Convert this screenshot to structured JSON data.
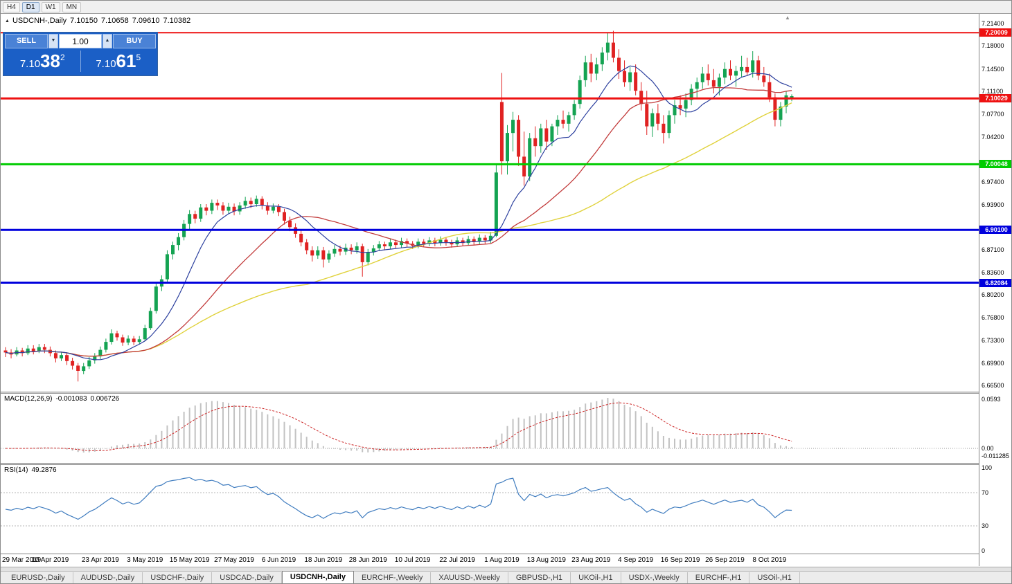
{
  "toolbar": {
    "buttons": [
      {
        "label": "H4",
        "active": false
      },
      {
        "label": "D1",
        "active": true
      },
      {
        "label": "W1",
        "active": false
      },
      {
        "label": "MN",
        "active": false
      }
    ]
  },
  "icons": {
    "collapse_triangle": "▲",
    "shift_marker": "▲",
    "spin_down": "▼",
    "spin_up": "▲"
  },
  "title_bar": {
    "symbol": "USDCNH-,Daily",
    "open": "7.10150",
    "high": "7.10658",
    "low": "7.09610",
    "close": "7.10382"
  },
  "one_click": {
    "sell_label": "SELL",
    "buy_label": "BUY",
    "volume": "1.00",
    "sell": {
      "big": "7.10",
      "pips": "38",
      "pt": "2"
    },
    "buy": {
      "big": "7.10",
      "pips": "61",
      "pt": "5"
    }
  },
  "indicators": {
    "macd": {
      "label": "MACD(12,26,9)",
      "value1": "-0.001083",
      "value2": "0.006726",
      "axis": [
        "0.0593",
        "0.00",
        "-0.011285"
      ]
    },
    "rsi": {
      "label": "RSI(14)",
      "value": "49.2876",
      "axis": [
        "100",
        "70",
        "30",
        "0"
      ]
    }
  },
  "tabs": [
    {
      "label": "EURUSD-,Daily",
      "active": false
    },
    {
      "label": "AUDUSD-,Daily",
      "active": false
    },
    {
      "label": "USDCHF-,Daily",
      "active": false
    },
    {
      "label": "USDCAD-,Daily",
      "active": false
    },
    {
      "label": "USDCNH-,Daily",
      "active": true
    },
    {
      "label": "EURCHF-,Weekly",
      "active": false
    },
    {
      "label": "XAUUSD-,Weekly",
      "active": false
    },
    {
      "label": "GBPUSD-,H1",
      "active": false
    },
    {
      "label": "UKOil-,H1",
      "active": false
    },
    {
      "label": "USDX-,Weekly",
      "active": false
    },
    {
      "label": "EURCHF-,H1",
      "active": false
    },
    {
      "label": "USOil-,H1",
      "active": false
    }
  ],
  "chart_data": {
    "type": "candlestick",
    "symbol": "USDCNH",
    "timeframe": "Daily",
    "ylim": [
      6.665,
      7.214
    ],
    "y_ticks": [
      "7.21400",
      "7.18000",
      "7.14500",
      "7.11100",
      "7.07700",
      "7.04200",
      "6.97400",
      "6.93900",
      "6.87100",
      "6.83600",
      "6.80200",
      "6.76800",
      "6.73300",
      "6.69900",
      "6.66500"
    ],
    "hlines": [
      {
        "price": 7.20009,
        "label": "7.20009",
        "color": "#ee1111",
        "w": 2
      },
      {
        "price": 7.10029,
        "label": "7.10029",
        "color": "#ee1111",
        "w": 3
      },
      {
        "price": 7.00048,
        "label": "7.00048",
        "color": "#00cc00",
        "w": 3
      },
      {
        "price": 6.901,
        "label": "6.90100",
        "color": "#0000dd",
        "w": 3
      },
      {
        "price": 6.82084,
        "label": "6.82084",
        "color": "#0000dd",
        "w": 3
      }
    ],
    "x_labels": [
      {
        "label": "29 Mar 2019",
        "i": 0
      },
      {
        "label": "10 Apr 2019",
        "i": 8
      },
      {
        "label": "23 Apr 2019",
        "i": 17
      },
      {
        "label": "3 May 2019",
        "i": 25
      },
      {
        "label": "15 May 2019",
        "i": 33
      },
      {
        "label": "27 May 2019",
        "i": 41
      },
      {
        "label": "6 Jun 2019",
        "i": 49
      },
      {
        "label": "18 Jun 2019",
        "i": 57
      },
      {
        "label": "28 Jun 2019",
        "i": 65
      },
      {
        "label": "10 Jul 2019",
        "i": 73
      },
      {
        "label": "22 Jul 2019",
        "i": 81
      },
      {
        "label": "1 Aug 2019",
        "i": 89
      },
      {
        "label": "13 Aug 2019",
        "i": 97
      },
      {
        "label": "23 Aug 2019",
        "i": 105
      },
      {
        "label": "4 Sep 2019",
        "i": 113
      },
      {
        "label": "16 Sep 2019",
        "i": 121
      },
      {
        "label": "26 Sep 2019",
        "i": 129
      },
      {
        "label": "8 Oct 2019",
        "i": 137
      }
    ],
    "up_color": "#14a352",
    "down_color": "#e02222",
    "ma_periods": {
      "blue": 10,
      "red": 25,
      "yellow": 55
    },
    "ma_colors": {
      "blue": "#2b3f9e",
      "red": "#c23b3b",
      "yellow": "#e0d23c"
    },
    "macd": {
      "fast": 12,
      "slow": 26,
      "signal": 9,
      "hist_color": "#c2c2c2",
      "signal_color": "#cc2222"
    },
    "rsi": {
      "period": 14,
      "color": "#3f7cbf",
      "levels": [
        70,
        30
      ]
    },
    "candles": [
      [
        6.718,
        6.723,
        6.708,
        6.715
      ],
      [
        6.715,
        6.72,
        6.706,
        6.712
      ],
      [
        6.712,
        6.723,
        6.709,
        6.718
      ],
      [
        6.718,
        6.722,
        6.709,
        6.714
      ],
      [
        6.714,
        6.726,
        6.711,
        6.721
      ],
      [
        6.721,
        6.726,
        6.712,
        6.717
      ],
      [
        6.717,
        6.728,
        6.714,
        6.723
      ],
      [
        6.723,
        6.728,
        6.714,
        6.719
      ],
      [
        6.719,
        6.724,
        6.709,
        6.714
      ],
      [
        6.714,
        6.718,
        6.7,
        6.706
      ],
      [
        6.706,
        6.716,
        6.702,
        6.711
      ],
      [
        6.711,
        6.715,
        6.696,
        6.702
      ],
      [
        6.702,
        6.707,
        6.689,
        6.695
      ],
      [
        6.695,
        6.699,
        6.671,
        6.687
      ],
      [
        6.687,
        6.699,
        6.682,
        6.694
      ],
      [
        6.694,
        6.708,
        6.69,
        6.703
      ],
      [
        6.703,
        6.714,
        6.698,
        6.709
      ],
      [
        6.709,
        6.724,
        6.705,
        6.719
      ],
      [
        6.719,
        6.736,
        6.715,
        6.731
      ],
      [
        6.731,
        6.75,
        6.727,
        6.744
      ],
      [
        6.744,
        6.748,
        6.733,
        6.738
      ],
      [
        6.738,
        6.742,
        6.725,
        6.73
      ],
      [
        6.73,
        6.741,
        6.726,
        6.736
      ],
      [
        6.736,
        6.74,
        6.726,
        6.731
      ],
      [
        6.731,
        6.74,
        6.727,
        6.735
      ],
      [
        6.735,
        6.757,
        6.733,
        6.752
      ],
      [
        6.752,
        6.783,
        6.749,
        6.778
      ],
      [
        6.778,
        6.82,
        6.774,
        6.815
      ],
      [
        6.815,
        6.832,
        6.808,
        6.826
      ],
      [
        6.826,
        6.87,
        6.821,
        6.864
      ],
      [
        6.864,
        6.883,
        6.856,
        6.878
      ],
      [
        6.878,
        6.896,
        6.87,
        6.89
      ],
      [
        6.89,
        6.916,
        6.885,
        6.91
      ],
      [
        6.91,
        6.931,
        6.902,
        6.925
      ],
      [
        6.925,
        6.93,
        6.911,
        6.918
      ],
      [
        6.918,
        6.94,
        6.913,
        6.935
      ],
      [
        6.935,
        6.94,
        6.923,
        6.93
      ],
      [
        6.93,
        6.947,
        6.925,
        6.942
      ],
      [
        6.942,
        6.947,
        6.931,
        6.938
      ],
      [
        6.938,
        6.943,
        6.924,
        6.93
      ],
      [
        6.93,
        6.942,
        6.926,
        6.936
      ],
      [
        6.936,
        6.941,
        6.923,
        6.929
      ],
      [
        6.929,
        6.943,
        6.924,
        6.938
      ],
      [
        6.938,
        6.951,
        6.933,
        6.945
      ],
      [
        6.945,
        6.95,
        6.934,
        6.94
      ],
      [
        6.94,
        6.953,
        6.936,
        6.948
      ],
      [
        6.948,
        6.952,
        6.932,
        6.938
      ],
      [
        6.938,
        6.943,
        6.924,
        6.93
      ],
      [
        6.93,
        6.941,
        6.926,
        6.936
      ],
      [
        6.936,
        6.94,
        6.922,
        6.928
      ],
      [
        6.928,
        6.933,
        6.909,
        6.915
      ],
      [
        6.915,
        6.921,
        6.899,
        6.905
      ],
      [
        6.905,
        6.911,
        6.889,
        6.895
      ],
      [
        6.895,
        6.9,
        6.876,
        6.882
      ],
      [
        6.882,
        6.887,
        6.864,
        6.87
      ],
      [
        6.87,
        6.876,
        6.853,
        6.862
      ],
      [
        6.862,
        6.876,
        6.857,
        6.87
      ],
      [
        6.87,
        6.875,
        6.844,
        6.856
      ],
      [
        6.856,
        6.87,
        6.851,
        6.865
      ],
      [
        6.865,
        6.878,
        6.86,
        6.872
      ],
      [
        6.872,
        6.877,
        6.862,
        6.868
      ],
      [
        6.868,
        6.88,
        6.863,
        6.874
      ],
      [
        6.874,
        6.879,
        6.864,
        6.87
      ],
      [
        6.87,
        6.882,
        6.865,
        6.876
      ],
      [
        6.876,
        6.88,
        6.83,
        6.852
      ],
      [
        6.852,
        6.872,
        6.847,
        6.867
      ],
      [
        6.867,
        6.878,
        6.862,
        6.873
      ],
      [
        6.873,
        6.884,
        6.869,
        6.879
      ],
      [
        6.879,
        6.883,
        6.87,
        6.876
      ],
      [
        6.876,
        6.887,
        6.872,
        6.882
      ],
      [
        6.882,
        6.886,
        6.873,
        6.878
      ],
      [
        6.878,
        6.889,
        6.874,
        6.884
      ],
      [
        6.884,
        6.888,
        6.875,
        6.88
      ],
      [
        6.88,
        6.884,
        6.872,
        6.877
      ],
      [
        6.877,
        6.888,
        6.873,
        6.883
      ],
      [
        6.883,
        6.887,
        6.875,
        6.88
      ],
      [
        6.88,
        6.89,
        6.876,
        6.885
      ],
      [
        6.885,
        6.889,
        6.876,
        6.881
      ],
      [
        6.881,
        6.891,
        6.877,
        6.886
      ],
      [
        6.886,
        6.89,
        6.877,
        6.882
      ],
      [
        6.882,
        6.886,
        6.874,
        6.879
      ],
      [
        6.879,
        6.89,
        6.875,
        6.885
      ],
      [
        6.885,
        6.889,
        6.876,
        6.881
      ],
      [
        6.881,
        6.892,
        6.877,
        6.887
      ],
      [
        6.887,
        6.891,
        6.878,
        6.883
      ],
      [
        6.883,
        6.894,
        6.879,
        6.889
      ],
      [
        6.889,
        6.893,
        6.88,
        6.885
      ],
      [
        6.885,
        6.898,
        6.881,
        6.892
      ],
      [
        6.892,
        7.0,
        6.89,
        6.988
      ],
      [
        7.095,
        7.139,
        6.985,
        7.005
      ],
      [
        7.005,
        7.06,
        6.985,
        7.048
      ],
      [
        7.048,
        7.08,
        7.02,
        7.068
      ],
      [
        7.068,
        7.075,
        6.998,
        7.012
      ],
      [
        7.012,
        7.05,
        6.968,
        6.982
      ],
      [
        6.982,
        7.048,
        6.975,
        7.04
      ],
      [
        7.04,
        7.058,
        7.012,
        7.028
      ],
      [
        7.028,
        7.062,
        7.018,
        7.055
      ],
      [
        7.055,
        7.068,
        7.022,
        7.035
      ],
      [
        7.035,
        7.062,
        7.028,
        7.058
      ],
      [
        7.058,
        7.075,
        7.045,
        7.068
      ],
      [
        7.068,
        7.082,
        7.055,
        7.062
      ],
      [
        7.062,
        7.08,
        7.05,
        7.075
      ],
      [
        7.075,
        7.098,
        7.068,
        7.092
      ],
      [
        7.092,
        7.135,
        7.085,
        7.128
      ],
      [
        7.128,
        7.165,
        7.118,
        7.155
      ],
      [
        7.155,
        7.168,
        7.125,
        7.138
      ],
      [
        7.138,
        7.162,
        7.128,
        7.152
      ],
      [
        7.152,
        7.178,
        7.142,
        7.17
      ],
      [
        7.17,
        7.1995,
        7.158,
        7.185
      ],
      [
        7.185,
        7.203,
        7.155,
        7.162
      ],
      [
        7.162,
        7.175,
        7.13,
        7.142
      ],
      [
        7.142,
        7.158,
        7.118,
        7.125
      ],
      [
        7.125,
        7.148,
        7.112,
        7.14
      ],
      [
        7.14,
        7.152,
        7.105,
        7.112
      ],
      [
        7.112,
        7.125,
        7.082,
        7.092
      ],
      [
        7.092,
        7.112,
        7.045,
        7.058
      ],
      [
        7.058,
        7.085,
        7.042,
        7.078
      ],
      [
        7.078,
        7.092,
        7.052,
        7.062
      ],
      [
        7.062,
        7.075,
        7.032,
        7.048
      ],
      [
        7.048,
        7.082,
        7.04,
        7.075
      ],
      [
        7.075,
        7.098,
        7.062,
        7.09
      ],
      [
        7.09,
        7.105,
        7.075,
        7.085
      ],
      [
        7.085,
        7.108,
        7.072,
        7.098
      ],
      [
        7.098,
        7.122,
        7.09,
        7.115
      ],
      [
        7.115,
        7.132,
        7.102,
        7.125
      ],
      [
        7.125,
        7.148,
        7.115,
        7.138
      ],
      [
        7.138,
        7.152,
        7.12,
        7.128
      ],
      [
        7.128,
        7.145,
        7.108,
        7.118
      ],
      [
        7.118,
        7.138,
        7.105,
        7.132
      ],
      [
        7.132,
        7.155,
        7.122,
        7.145
      ],
      [
        7.145,
        7.158,
        7.128,
        7.135
      ],
      [
        7.135,
        7.15,
        7.118,
        7.142
      ],
      [
        7.142,
        7.165,
        7.132,
        7.148
      ],
      [
        7.148,
        7.162,
        7.135,
        7.14
      ],
      [
        7.14,
        7.172,
        7.132,
        7.158
      ],
      [
        7.158,
        7.165,
        7.128,
        7.135
      ],
      [
        7.135,
        7.148,
        7.118,
        7.125
      ],
      [
        7.125,
        7.138,
        7.095,
        7.102
      ],
      [
        7.102,
        7.108,
        7.058,
        7.068
      ],
      [
        7.068,
        7.095,
        7.058,
        7.088
      ],
      [
        7.088,
        7.112,
        7.078,
        7.105
      ],
      [
        7.1015,
        7.10658,
        7.0961,
        7.10382
      ]
    ]
  }
}
